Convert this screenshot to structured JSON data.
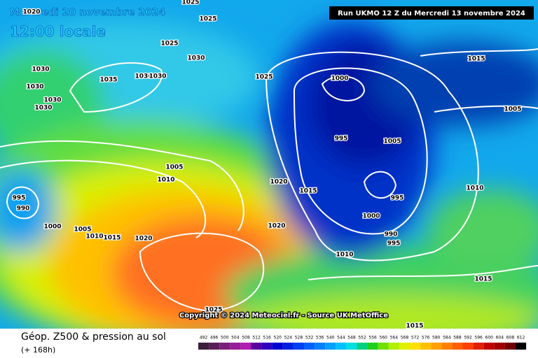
{
  "header": {
    "date": "Mercredi 20 novembre 2024",
    "time": "12:00 locale",
    "run": "Run UKMO 12 Z du Mercredi 13 novembre 2024"
  },
  "copyright": "Copyright © 2024 Meteociel.fr - Source UK MetOffice",
  "footer": {
    "title": "Géop. Z500 & pression au sol",
    "subtitle": "(+ 168h)"
  },
  "isobar_labels": [
    1020,
    1025,
    1025,
    1025,
    1030,
    1030,
    1030,
    1030,
    1030,
    1035,
    1030,
    1030,
    1025,
    1000,
    1015,
    1005,
    995,
    1005,
    1005,
    1010,
    1020,
    1015,
    1010,
    995,
    995,
    990,
    1000,
    1000,
    1005,
    1010,
    1015,
    1020,
    1020,
    990,
    995,
    1010,
    1015,
    1025,
    1015
  ],
  "legend": {
    "values": [
      492,
      496,
      500,
      504,
      508,
      512,
      516,
      520,
      524,
      528,
      532,
      536,
      540,
      544,
      548,
      552,
      556,
      560,
      564,
      568,
      572,
      576,
      580,
      584,
      588,
      592,
      596,
      600,
      604,
      608,
      612
    ],
    "colors": [
      "#3c1f3c",
      "#5a1f5a",
      "#7a1f7a",
      "#961e96",
      "#b01eb0",
      "#5a00a0",
      "#3000c0",
      "#0000d0",
      "#0020e0",
      "#0040f0",
      "#0060ff",
      "#0080ff",
      "#00a0ff",
      "#00c0ff",
      "#00e0e0",
      "#00d080",
      "#20d020",
      "#70e000",
      "#b0f000",
      "#e0f000",
      "#ffe000",
      "#ffc000",
      "#ffa000",
      "#ff8000",
      "#ff6000",
      "#ff4000",
      "#e02000",
      "#c00000",
      "#a00000",
      "#700000",
      "#000000"
    ]
  }
}
